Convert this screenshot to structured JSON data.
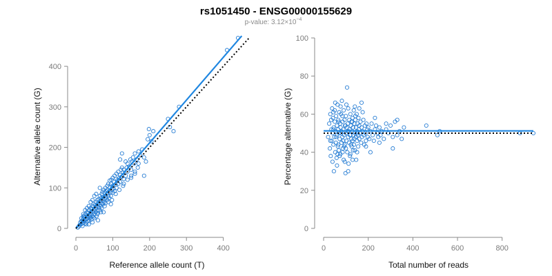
{
  "figure": {
    "title": "rs1051450 - ENSG00000155629",
    "subtitle": "p-value: 3.12×10",
    "subtitle_exponent": "−4"
  },
  "colors": {
    "points": "#2a7fd4",
    "fit_line": "#1f86e0",
    "reference_line": "#000000"
  },
  "chart_data": [
    {
      "type": "scatter",
      "xlabel": "Reference allele count (T)",
      "ylabel": "Alternative allele count (G)",
      "xlim": [
        0,
        440
      ],
      "ylim": [
        0,
        470
      ],
      "xticks": [
        0,
        100,
        200,
        300,
        400
      ],
      "yticks": [
        0,
        100,
        200,
        300,
        400
      ],
      "grid": false,
      "fit_line": {
        "x": [
          0,
          450
        ],
        "y": [
          0,
          475
        ]
      },
      "reference_line": {
        "x": [
          0,
          470
        ],
        "y": [
          0,
          470
        ]
      },
      "points": [
        [
          5,
          2
        ],
        [
          8,
          5
        ],
        [
          10,
          8
        ],
        [
          12,
          15
        ],
        [
          14,
          10
        ],
        [
          15,
          18
        ],
        [
          16,
          12
        ],
        [
          18,
          20
        ],
        [
          18,
          6
        ],
        [
          20,
          25
        ],
        [
          20,
          14
        ],
        [
          22,
          18
        ],
        [
          22,
          30
        ],
        [
          24,
          20
        ],
        [
          25,
          12
        ],
        [
          25,
          28
        ],
        [
          26,
          35
        ],
        [
          28,
          22
        ],
        [
          28,
          15
        ],
        [
          30,
          30
        ],
        [
          30,
          40
        ],
        [
          32,
          25
        ],
        [
          32,
          18
        ],
        [
          34,
          38
        ],
        [
          35,
          30
        ],
        [
          36,
          45
        ],
        [
          36,
          20
        ],
        [
          38,
          32
        ],
        [
          40,
          50
        ],
        [
          40,
          28
        ],
        [
          40,
          40
        ],
        [
          42,
          35
        ],
        [
          42,
          22
        ],
        [
          44,
          48
        ],
        [
          45,
          42
        ],
        [
          45,
          30
        ],
        [
          46,
          55
        ],
        [
          48,
          40
        ],
        [
          48,
          60
        ],
        [
          50,
          45
        ],
        [
          50,
          35
        ],
        [
          50,
          25
        ],
        [
          52,
          58
        ],
        [
          52,
          48
        ],
        [
          54,
          40
        ],
        [
          55,
          65
        ],
        [
          55,
          50
        ],
        [
          56,
          30
        ],
        [
          58,
          55
        ],
        [
          58,
          70
        ],
        [
          60,
          45
        ],
        [
          60,
          62
        ],
        [
          60,
          38
        ],
        [
          62,
          72
        ],
        [
          62,
          52
        ],
        [
          64,
          58
        ],
        [
          65,
          80
        ],
        [
          65,
          45
        ],
        [
          66,
          68
        ],
        [
          68,
          55
        ],
        [
          68,
          75
        ],
        [
          70,
          62
        ],
        [
          70,
          85
        ],
        [
          70,
          50
        ],
        [
          72,
          90
        ],
        [
          72,
          70
        ],
        [
          74,
          60
        ],
        [
          75,
          78
        ],
        [
          75,
          95
        ],
        [
          76,
          65
        ],
        [
          78,
          88
        ],
        [
          78,
          72
        ],
        [
          80,
          80
        ],
        [
          80,
          100
        ],
        [
          80,
          62
        ],
        [
          82,
          92
        ],
        [
          82,
          75
        ],
        [
          84,
          85
        ],
        [
          85,
          105
        ],
        [
          85,
          70
        ],
        [
          86,
          95
        ],
        [
          88,
          80
        ],
        [
          88,
          110
        ],
        [
          90,
          90
        ],
        [
          90,
          75
        ],
        [
          92,
          100
        ],
        [
          92,
          118
        ],
        [
          94,
          88
        ],
        [
          95,
          110
        ],
        [
          95,
          80
        ],
        [
          96,
          120
        ],
        [
          98,
          95
        ],
        [
          100,
          105
        ],
        [
          100,
          88
        ],
        [
          100,
          125
        ],
        [
          102,
          98
        ],
        [
          104,
          115
        ],
        [
          105,
          130
        ],
        [
          105,
          92
        ],
        [
          108,
          108
        ],
        [
          108,
          122
        ],
        [
          110,
          135
        ],
        [
          110,
          100
        ],
        [
          112,
          118
        ],
        [
          115,
          140
        ],
        [
          115,
          110
        ],
        [
          118,
          125
        ],
        [
          120,
          132
        ],
        [
          120,
          115
        ],
        [
          122,
          145
        ],
        [
          125,
          128
        ],
        [
          125,
          150
        ],
        [
          128,
          138
        ],
        [
          130,
          122
        ],
        [
          130,
          145
        ],
        [
          135,
          165
        ],
        [
          135,
          130
        ],
        [
          138,
          150
        ],
        [
          140,
          140
        ],
        [
          140,
          160
        ],
        [
          145,
          152
        ],
        [
          148,
          170
        ],
        [
          150,
          145
        ],
        [
          152,
          165
        ],
        [
          155,
          175
        ],
        [
          158,
          160
        ],
        [
          160,
          185
        ],
        [
          165,
          170
        ],
        [
          168,
          150
        ],
        [
          170,
          190
        ],
        [
          175,
          180
        ],
        [
          180,
          195
        ],
        [
          185,
          175
        ],
        [
          190,
          165
        ],
        [
          195,
          220
        ],
        [
          198,
          245
        ],
        [
          200,
          230
        ],
        [
          205,
          215
        ],
        [
          210,
          240
        ],
        [
          150,
          130
        ],
        [
          160,
          140
        ],
        [
          130,
          110
        ],
        [
          170,
          160
        ],
        [
          185,
          130
        ],
        [
          250,
          270
        ],
        [
          255,
          250
        ],
        [
          265,
          240
        ],
        [
          280,
          300
        ],
        [
          120,
          170
        ],
        [
          125,
          185
        ],
        [
          95,
          60
        ],
        [
          75,
          40
        ],
        [
          60,
          20
        ],
        [
          45,
          15
        ],
        [
          35,
          10
        ],
        [
          30,
          50
        ],
        [
          25,
          45
        ],
        [
          20,
          35
        ],
        [
          40,
          65
        ],
        [
          55,
          85
        ],
        [
          65,
          100
        ],
        [
          45,
          70
        ],
        [
          50,
          80
        ],
        [
          35,
          55
        ],
        [
          20,
          30
        ],
        [
          15,
          25
        ],
        [
          28,
          10
        ],
        [
          38,
          25
        ],
        [
          48,
          28
        ],
        [
          58,
          35
        ],
        [
          68,
          40
        ],
        [
          78,
          55
        ],
        [
          88,
          65
        ],
        [
          98,
          70
        ],
        [
          108,
          85
        ],
        [
          118,
          95
        ],
        [
          128,
          105
        ],
        [
          140,
          120
        ],
        [
          150,
          125
        ],
        [
          160,
          135
        ],
        [
          440,
          470
        ],
        [
          410,
          440
        ]
      ]
    },
    {
      "type": "scatter",
      "xlabel": "Total number of reads",
      "ylabel": "Percentage alternative (G)",
      "xlim": [
        0,
        940
      ],
      "ylim": [
        0,
        100
      ],
      "xticks": [
        0,
        200,
        400,
        600,
        800
      ],
      "yticks": [
        0,
        20,
        40,
        60,
        80,
        100
      ],
      "grid": false,
      "fit_line": {
        "x": [
          0,
          940
        ],
        "y": [
          51.2,
          51.2
        ]
      },
      "reference_line": {
        "x": [
          0,
          940
        ],
        "y": [
          50,
          50
        ]
      },
      "points": [
        [
          20,
          48
        ],
        [
          25,
          55
        ],
        [
          28,
          42
        ],
        [
          30,
          60
        ],
        [
          32,
          38
        ],
        [
          35,
          52
        ],
        [
          36,
          46
        ],
        [
          38,
          63
        ],
        [
          40,
          35
        ],
        [
          40,
          50
        ],
        [
          42,
          58
        ],
        [
          44,
          44
        ],
        [
          45,
          53
        ],
        [
          46,
          30
        ],
        [
          48,
          48
        ],
        [
          50,
          56
        ],
        [
          50,
          62
        ],
        [
          52,
          40
        ],
        [
          54,
          51
        ],
        [
          55,
          45
        ],
        [
          56,
          59
        ],
        [
          58,
          37
        ],
        [
          60,
          54
        ],
        [
          60,
          49
        ],
        [
          62,
          65
        ],
        [
          64,
          43
        ],
        [
          65,
          52
        ],
        [
          66,
          57
        ],
        [
          68,
          41
        ],
        [
          70,
          50
        ],
        [
          70,
          61
        ],
        [
          72,
          47
        ],
        [
          74,
          55
        ],
        [
          75,
          39
        ],
        [
          76,
          53
        ],
        [
          78,
          60
        ],
        [
          80,
          45
        ],
        [
          80,
          51
        ],
        [
          82,
          67
        ],
        [
          84,
          48
        ],
        [
          85,
          56
        ],
        [
          86,
          42
        ],
        [
          88,
          52
        ],
        [
          90,
          62
        ],
        [
          90,
          36
        ],
        [
          92,
          49
        ],
        [
          94,
          57
        ],
        [
          95,
          44
        ],
        [
          96,
          54
        ],
        [
          98,
          29
        ],
        [
          100,
          50
        ],
        [
          100,
          59
        ],
        [
          102,
          46
        ],
        [
          104,
          53
        ],
        [
          105,
          74
        ],
        [
          106,
          40
        ],
        [
          108,
          55
        ],
        [
          110,
          48
        ],
        [
          110,
          63
        ],
        [
          112,
          51
        ],
        [
          114,
          45
        ],
        [
          115,
          57
        ],
        [
          116,
          52
        ],
        [
          118,
          38
        ],
        [
          120,
          49
        ],
        [
          120,
          60
        ],
        [
          122,
          54
        ],
        [
          124,
          47
        ],
        [
          125,
          56
        ],
        [
          126,
          43
        ],
        [
          128,
          51
        ],
        [
          130,
          58
        ],
        [
          130,
          46
        ],
        [
          132,
          53
        ],
        [
          134,
          49
        ],
        [
          135,
          62
        ],
        [
          136,
          44
        ],
        [
          138,
          55
        ],
        [
          140,
          50
        ],
        [
          140,
          41
        ],
        [
          142,
          57
        ],
        [
          144,
          48
        ],
        [
          145,
          53
        ],
        [
          146,
          36
        ],
        [
          148,
          60
        ],
        [
          150,
          51
        ],
        [
          150,
          46
        ],
        [
          152,
          55
        ],
        [
          154,
          49
        ],
        [
          155,
          43
        ],
        [
          156,
          58
        ],
        [
          158,
          52
        ],
        [
          160,
          47
        ],
        [
          160,
          54
        ],
        [
          162,
          50
        ],
        [
          165,
          56
        ],
        [
          168,
          45
        ],
        [
          170,
          53
        ],
        [
          172,
          48
        ],
        [
          175,
          51
        ],
        [
          178,
          57
        ],
        [
          180,
          49
        ],
        [
          182,
          44
        ],
        [
          185,
          54
        ],
        [
          188,
          50
        ],
        [
          190,
          46
        ],
        [
          192,
          55
        ],
        [
          195,
          52
        ],
        [
          198,
          48
        ],
        [
          200,
          53
        ],
        [
          205,
          47
        ],
        [
          210,
          51
        ],
        [
          215,
          55
        ],
        [
          220,
          49
        ],
        [
          225,
          46
        ],
        [
          230,
          52
        ],
        [
          235,
          54
        ],
        [
          240,
          50
        ],
        [
          245,
          48
        ],
        [
          250,
          53
        ],
        [
          255,
          49
        ],
        [
          260,
          51
        ],
        [
          270,
          47
        ],
        [
          280,
          52
        ],
        [
          290,
          50
        ],
        [
          300,
          54
        ],
        [
          310,
          48
        ],
        [
          320,
          56
        ],
        [
          330,
          49
        ],
        [
          340,
          51
        ],
        [
          350,
          47
        ],
        [
          360,
          53
        ],
        [
          170,
          66
        ],
        [
          190,
          43
        ],
        [
          210,
          40
        ],
        [
          230,
          58
        ],
        [
          250,
          45
        ],
        [
          280,
          55
        ],
        [
          310,
          42
        ],
        [
          330,
          57
        ],
        [
          460,
          54
        ],
        [
          510,
          49
        ],
        [
          520,
          51
        ],
        [
          880,
          50
        ],
        [
          940,
          50
        ],
        [
          60,
          33
        ],
        [
          72,
          38
        ],
        [
          85,
          40
        ],
        [
          95,
          35
        ],
        [
          100,
          42
        ],
        [
          110,
          30
        ],
        [
          120,
          39
        ],
        [
          130,
          36
        ],
        [
          140,
          64
        ],
        [
          150,
          40
        ],
        [
          160,
          63
        ],
        [
          175,
          61
        ],
        [
          30,
          46
        ],
        [
          34,
          57
        ],
        [
          44,
          61
        ],
        [
          52,
          66
        ],
        [
          62,
          39
        ],
        [
          66,
          44
        ],
        [
          76,
          64
        ],
        [
          84,
          59
        ],
        [
          92,
          43
        ],
        [
          102,
          65
        ],
        [
          112,
          34
        ],
        [
          122,
          44
        ],
        [
          132,
          41
        ],
        [
          142,
          59
        ],
        [
          152,
          50
        ],
        [
          44,
          52
        ],
        [
          56,
          48
        ],
        [
          68,
          56
        ],
        [
          78,
          50
        ],
        [
          88,
          46
        ],
        [
          98,
          54
        ],
        [
          108,
          51
        ],
        [
          118,
          49
        ],
        [
          128,
          56
        ],
        [
          138,
          47
        ]
      ]
    }
  ]
}
